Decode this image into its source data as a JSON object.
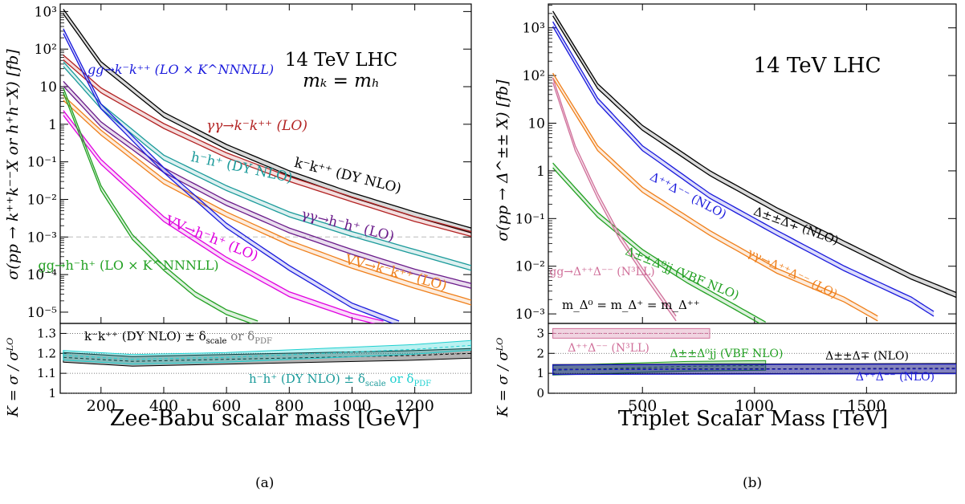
{
  "captions": {
    "a": "(a)",
    "b": "(b)"
  },
  "chart_data": [
    {
      "type": "line",
      "panel": "a",
      "xlabel": "Zee-Babu scalar mass [GeV]",
      "ylabel": "σ(pp → k⁺⁺k⁻⁻X or h⁺h⁻X) [fb]",
      "ratio_ylabel": "K = σ / σᴸᴼ",
      "xlim": [
        70,
        1380
      ],
      "ylim_log": [
        -5.3,
        3.2
      ],
      "xticks": [
        "200",
        "400",
        "600",
        "800",
        "1000",
        "1200"
      ],
      "yticks": [
        "10⁻⁵",
        "10⁻⁴",
        "10⁻³",
        "10⁻²",
        "10⁻¹",
        "1",
        "10",
        "10²",
        "10³"
      ],
      "ratio_ylim": [
        1.0,
        1.35
      ],
      "ratio_yticks": [
        "1",
        "1.1",
        "1.2",
        "1.3"
      ],
      "top_annotation_1": "14 TeV LHC",
      "top_annotation_2": "mₖ = mₕ",
      "grid": "dotted horizontal at 10⁻³ and ratio ticks",
      "series": [
        {
          "label": "k⁻k⁺⁺ (DY NLO)",
          "color": "#000000",
          "x": [
            80,
            200,
            400,
            600,
            800,
            1000,
            1200,
            1380
          ],
          "y": [
            1000,
            40,
            1.8,
            0.25,
            0.05,
            0.013,
            0.004,
            0.0015
          ]
        },
        {
          "label": "γγ→k⁻k⁺⁺ (LO)",
          "color": "#b22222",
          "x": [
            80,
            200,
            400,
            600,
            800,
            1000,
            1200,
            1380
          ],
          "y": [
            60,
            8,
            0.9,
            0.15,
            0.035,
            0.01,
            0.003,
            0.0012
          ]
        },
        {
          "label": "h⁻h⁺ (DY NLO)",
          "color": "#1a9a9a",
          "x": [
            80,
            200,
            400,
            600,
            800,
            1000,
            1200,
            1380
          ],
          "y": [
            40,
            3,
            0.13,
            0.02,
            0.004,
            0.0012,
            0.0004,
            0.00015
          ]
        },
        {
          "label": "γγ→h⁻h⁺ (LO)",
          "color": "#6a1b8a",
          "x": [
            80,
            200,
            400,
            600,
            800,
            1000,
            1200,
            1380
          ],
          "y": [
            12,
            1,
            0.06,
            0.008,
            0.0015,
            0.0004,
            0.00012,
            5e-05
          ]
        },
        {
          "label": "VV→k⁻k⁺⁺ (LO)",
          "color": "#ef7f1a",
          "x": [
            80,
            200,
            400,
            600,
            800,
            1000,
            1200,
            1380
          ],
          "y": [
            5,
            0.6,
            0.03,
            0.004,
            0.0007,
            0.00017,
            5e-05,
            1.8e-05
          ]
        },
        {
          "label": "VV→h⁻h⁺ (LO)",
          "color": "#e000e0",
          "x": [
            80,
            200,
            400,
            600,
            800,
            1000,
            1100
          ],
          "y": [
            2,
            0.1,
            0.003,
            0.00025,
            3e-05,
            8e-06,
            5e-06
          ]
        },
        {
          "label": "gg→k⁻k⁺⁺ (LO × K^NNNLL)",
          "color": "#1a1adc",
          "x": [
            80,
            200,
            400,
            600,
            800,
            1000,
            1150
          ],
          "y": [
            300,
            3,
            0.06,
            0.002,
            0.00015,
            1.5e-05,
            5e-06
          ]
        },
        {
          "label": "gg→h⁻h⁺ (LO × K^NNNLL)",
          "color": "#22a022",
          "x": [
            80,
            200,
            300,
            400,
            500,
            600,
            700
          ],
          "y": [
            8,
            0.02,
            0.001,
            0.00015,
            3e-05,
            1e-05,
            5e-06
          ]
        }
      ],
      "ratio_series": [
        {
          "label": "k⁻k⁺⁺ (DY NLO) ± δ_scale or δ_PDF",
          "color": "#000000",
          "x": [
            80,
            300,
            600,
            900,
            1200,
            1380
          ],
          "y": [
            1.18,
            1.16,
            1.17,
            1.18,
            1.19,
            1.2
          ]
        },
        {
          "label": "h⁻h⁺ (DY NLO) ± δ_scale or δ_PDF",
          "color": "#1fd0d0",
          "x": [
            80,
            300,
            600,
            900,
            1200,
            1380
          ],
          "y": [
            1.19,
            1.17,
            1.18,
            1.2,
            1.22,
            1.24
          ]
        }
      ],
      "ratio_annotations": {
        "k": "k⁻k⁺⁺ (DY NLO) ± δ",
        "k_scale": "scale",
        "k_or": " or δ",
        "k_pdf": "PDF",
        "h": "h⁻h⁺ (DY NLO) ± δ",
        "h_scale": "scale",
        "h_or": " or δ",
        "h_pdf": "PDF"
      }
    },
    {
      "type": "line",
      "panel": "b",
      "xlabel": "Triplet Scalar Mass [TeV]",
      "ylabel": "σ(pp → Δ^±± X) [fb]",
      "ratio_ylabel": "K = σ / σᴸᴼ",
      "xlim": [
        80,
        1900
      ],
      "ylim_log": [
        -3.2,
        3.5
      ],
      "xticks": [
        "500",
        "1000",
        "1500"
      ],
      "yticks": [
        "10⁻³",
        "10⁻²",
        "10⁻¹",
        "1",
        "10",
        "10²",
        "10³"
      ],
      "ratio_ylim": [
        0,
        3.5
      ],
      "ratio_yticks": [
        "0",
        "1",
        "2",
        "3"
      ],
      "top_annotation_1": "14 TeV LHC",
      "mass_note": "m_Δ⁰ = m_Δ⁺ = m_Δ⁺⁺",
      "series": [
        {
          "label": "Δ±±Δ∓ (NLO)",
          "color": "#000000",
          "x": [
            100,
            300,
            500,
            800,
            1100,
            1400,
            1700,
            1900
          ],
          "y": [
            2000,
            60,
            8,
            0.9,
            0.15,
            0.03,
            0.006,
            0.0025
          ]
        },
        {
          "label": "Δ⁺⁺Δ⁻⁻ (NLO)",
          "color": "#1a1adc",
          "x": [
            100,
            300,
            500,
            800,
            1100,
            1400,
            1700,
            1800
          ],
          "y": [
            1200,
            30,
            3,
            0.3,
            0.05,
            0.009,
            0.002,
            0.001
          ]
        },
        {
          "label": "γγ→Δ⁺⁺Δ⁻⁻ (LO)",
          "color": "#ef7f1a",
          "x": [
            100,
            300,
            500,
            800,
            1100,
            1400,
            1550
          ],
          "y": [
            100,
            3,
            0.4,
            0.05,
            0.008,
            0.002,
            0.0008
          ]
        },
        {
          "label": "Δ±±Δ⁰jj (VBF NLO)",
          "color": "#22a022",
          "x": [
            100,
            300,
            500,
            700,
            900,
            1050
          ],
          "y": [
            1.3,
            0.12,
            0.02,
            0.005,
            0.0015,
            0.0006
          ]
        },
        {
          "label": "gg→Δ⁺⁺Δ⁻⁻ (N³LL)",
          "color": "#d0709a",
          "x": [
            100,
            200,
            300,
            400,
            500,
            650
          ],
          "y": [
            80,
            3,
            0.3,
            0.04,
            0.008,
            0.0008
          ]
        }
      ],
      "ratio_series": [
        {
          "label": "Δ⁺⁺Δ⁻⁻ (N³LL)",
          "color": "#d0709a",
          "x": [
            100,
            800
          ],
          "y": [
            3.0,
            3.0
          ]
        },
        {
          "label": "Δ±±Δ⁰jj (VBF NLO)",
          "color": "#22a022",
          "x": [
            100,
            400,
            700,
            1050
          ],
          "y": [
            1.15,
            1.25,
            1.35,
            1.4
          ]
        },
        {
          "label": "Δ±±Δ∓ (NLO)",
          "color": "#000000",
          "x": [
            100,
            1900
          ],
          "y": [
            1.2,
            1.25
          ]
        },
        {
          "label": "Δ⁺⁺Δ⁻⁻ (NLO)",
          "color": "#1a1adc",
          "x": [
            100,
            1900
          ],
          "y": [
            1.18,
            1.22
          ]
        }
      ]
    }
  ]
}
